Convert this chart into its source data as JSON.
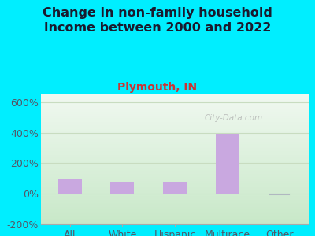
{
  "title": "Change in non-family household\nincome between 2000 and 2022",
  "subtitle": "Plymouth, IN",
  "categories": [
    "All",
    "White",
    "Hispanic",
    "Multirace",
    "Other"
  ],
  "values": [
    100,
    80,
    78,
    390,
    -5
  ],
  "bar_color": "#c9a8e0",
  "other_line_color": "#b0b8c0",
  "title_fontsize": 11.5,
  "subtitle_fontsize": 10,
  "title_color": "#1a1a2e",
  "subtitle_color": "#cc3333",
  "tick_fontsize": 9,
  "tick_color": "#555566",
  "bg_outer": "#00eeff",
  "bg_plot_top": "#e8f5e0",
  "bg_plot_bottom": "#d0f0d8",
  "ylim": [
    -200,
    650
  ],
  "yticks": [
    -200,
    0,
    200,
    400,
    600
  ],
  "ytick_labels": [
    "-200%",
    "0%",
    "200%",
    "400%",
    "600%"
  ],
  "watermark": "City-Data.com",
  "watermark_color": "#aaaaaa",
  "grid_color": "#c8dcc0"
}
